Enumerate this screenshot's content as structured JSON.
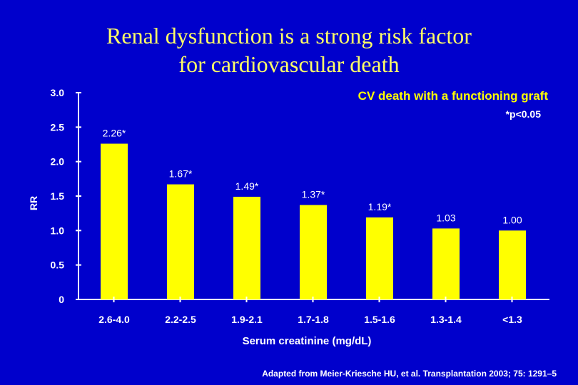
{
  "slide": {
    "title_line1": "Renal dysfunction is a strong risk factor",
    "title_line2": "for cardiovascular death",
    "footnote": "Adapted from Meier-Kriesche HU, et al. Transplantation 2003; 75: 1291–5"
  },
  "colors": {
    "background": "#0000cc",
    "bar": "#ffff00",
    "title": "#ffff66",
    "text": "#ffffff"
  },
  "chart_data": {
    "type": "bar",
    "title": "",
    "subtitle": "CV death with a functioning graft",
    "note": "*p<0.05",
    "xlabel": "Serum creatinine (mg/dL)",
    "ylabel": "RR",
    "ylim": [
      0,
      3.0
    ],
    "yticks": [
      "0",
      "0.5",
      "1.0",
      "1.5",
      "2.0",
      "2.5",
      "3.0"
    ],
    "ytick_values": [
      0,
      0.5,
      1.0,
      1.5,
      2.0,
      2.5,
      3.0
    ],
    "categories": [
      "2.6-4.0",
      "2.2-2.5",
      "1.9-2.1",
      "1.7-1.8",
      "1.5-1.6",
      "1.3-1.4",
      "<1.3"
    ],
    "values": [
      2.26,
      1.67,
      1.49,
      1.37,
      1.19,
      1.03,
      1.0
    ],
    "data_labels": [
      "2.26*",
      "1.67*",
      "1.49*",
      "1.37*",
      "1.19*",
      "1.03",
      "1.00"
    ],
    "grid": false,
    "legend": "none"
  }
}
